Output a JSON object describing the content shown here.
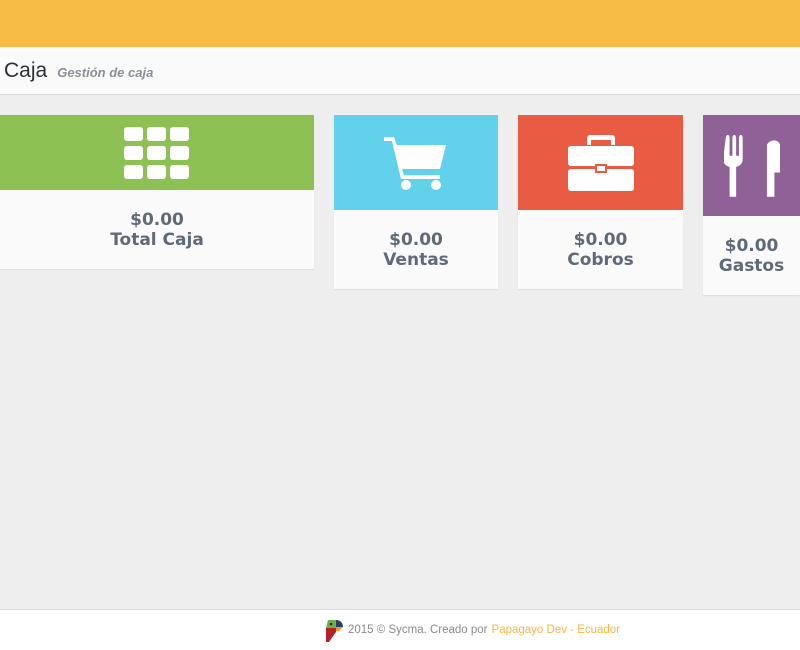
{
  "header": {
    "title": "Caja",
    "subtitle": "Gestión de caja",
    "bar_color": "#f7bc45"
  },
  "cards": [
    {
      "amount": "$0.00",
      "label": "Total Caja",
      "icon": "th-grid-icon",
      "color": "#8dc153"
    },
    {
      "amount": "$0.00",
      "label": "Ventas",
      "icon": "shopping-cart-icon",
      "color": "#62d1ec"
    },
    {
      "amount": "$0.00",
      "label": "Cobros",
      "icon": "briefcase-icon",
      "color": "#e95b43"
    },
    {
      "amount": "$0.00",
      "label": "Gastos",
      "icon": "cutlery-icon",
      "color": "#8f6196"
    }
  ],
  "footer": {
    "text": "2015 © Sycma. Creado por",
    "link": "Papagayo Dev - Ecuador",
    "logo": "parrot-logo"
  }
}
